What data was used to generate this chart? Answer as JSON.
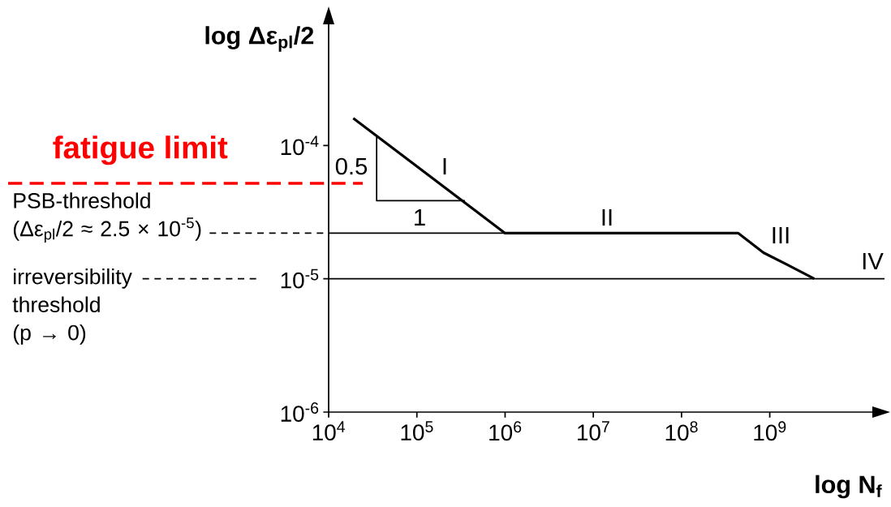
{
  "chart_data": {
    "type": "line",
    "xlabel": "log N$_{f}$",
    "ylabel": "log Δε$_{pl}$/2",
    "log": "xy",
    "marker": "none",
    "xlim": [
      10000,
      20000000000
    ],
    "ylim": [
      1e-06,
      0.001
    ],
    "xticks": [
      {
        "value": 10000,
        "label": "10$^{4}$"
      },
      {
        "value": 100000,
        "label": "10$^{5}$"
      },
      {
        "value": 1000000,
        "label": "10$^{6}$"
      },
      {
        "value": 10000000,
        "label": "10$^{7}$"
      },
      {
        "value": 100000000,
        "label": "10$^{8}$"
      },
      {
        "value": 1000000000,
        "label": "10$^{9}$"
      }
    ],
    "yticks": [
      {
        "value": 1e-06,
        "label": "10$^{-6}$"
      },
      {
        "value": 1e-05,
        "label": "10$^{-5}$"
      },
      {
        "value": 0.0001,
        "label": "10$^{-4}$"
      }
    ],
    "series": [
      {
        "color": "#000000",
        "x": [
          19000,
          1000000,
          440000000,
          850000000,
          1600000000,
          3200000000
        ],
        "values": [
          0.00016,
          2.2e-05,
          2.2e-05,
          1.57e-05,
          1.27e-05,
          1e-05
        ]
      },
      {
        "color": "#000000",
        "x": [
          35000,
          35000,
          350000
        ],
        "values": [
          0.000117,
          3.85e-05,
          3.85e-05
        ]
      }
    ],
    "ref_lines": [
      {
        "axis": "y",
        "value": 5.2e-05,
        "label": "fatigue limit",
        "color": "#ff0000",
        "line_style": "dashed"
      },
      {
        "axis": "y",
        "value": 2.2e-05,
        "label": "PSB-threshold (Δε$_{pl}$/2 ≈ 2.5 × 10$^{-5}$)"
      },
      {
        "axis": "y",
        "value": 1e-05,
        "label": "irreversibility threshold (p → 0)"
      }
    ],
    "annotations": [
      "I",
      "II",
      "III",
      "IV",
      "0.5",
      "1"
    ]
  }
}
